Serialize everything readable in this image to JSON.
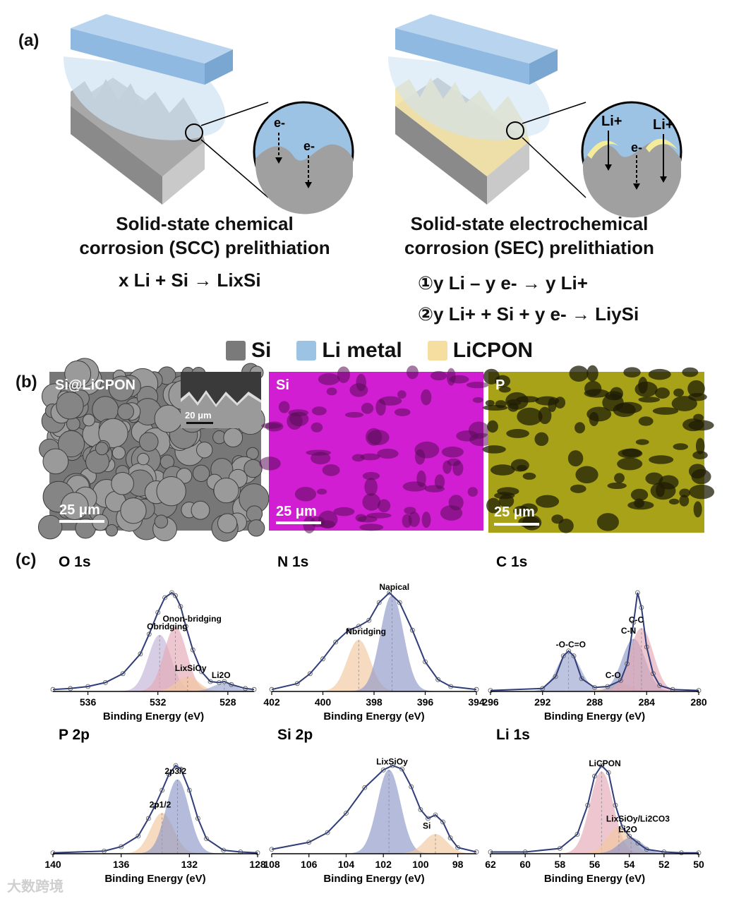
{
  "panel_a": {
    "label": "(a)",
    "scc_title_line1": "Solid-state chemical",
    "scc_title_line2": "corrosion (SCC) prelithiation",
    "scc_eq": "x Li + Si → LixSi",
    "sec_title_line1": "Solid-state electrochemical",
    "sec_title_line2": "corrosion (SEC) prelithiation",
    "sec_eq1": "①y  Li – y e- → y Li+",
    "sec_eq2": "②y Li+ + Si + y e- → LiySi",
    "electron": "e-",
    "li_ion": "Li+",
    "legend": [
      {
        "label": "Si",
        "color": "#7a7a7a"
      },
      {
        "label": "Li metal",
        "color": "#9cc3e4"
      },
      {
        "label": "LiCPON",
        "color": "#f6deA0"
      }
    ]
  },
  "panel_b": {
    "label": "(b)",
    "images": [
      {
        "label": "Si@LiCPON",
        "scale": "25 μm",
        "inset_scale": "20 μm"
      },
      {
        "label": "Si",
        "scale": "25 μm",
        "color": "#d21ed2"
      },
      {
        "label": "P",
        "scale": "25 μm",
        "color": "#b9b21c"
      }
    ]
  },
  "panel_c": {
    "label": "(c)",
    "xlabel": "Binding Energy (eV)",
    "watermark": "大数跨境"
  },
  "chart_data": [
    {
      "type": "line",
      "title": "O 1s",
      "xlabel": "Binding Energy (eV)",
      "xlim": [
        538,
        526.5
      ],
      "ticks": [
        536,
        532,
        528
      ],
      "x": [
        538,
        537,
        536,
        535,
        534,
        533,
        532.5,
        532,
        531.6,
        531.2,
        531,
        530.7,
        530.4,
        530,
        529.5,
        529,
        528.5,
        528.2,
        527.8,
        527,
        526.5
      ],
      "values": [
        0.02,
        0.03,
        0.05,
        0.09,
        0.18,
        0.38,
        0.58,
        0.8,
        0.95,
        1.0,
        0.97,
        0.86,
        0.66,
        0.42,
        0.2,
        0.1,
        0.09,
        0.1,
        0.07,
        0.03,
        0.02
      ],
      "peaks": [
        {
          "name": "Obridging",
          "center": 531.9,
          "height": 0.57,
          "color": "#c3b4d8"
        },
        {
          "name": "Onon-bridging",
          "center": 531.0,
          "height": 0.65,
          "color": "#e6a9b6"
        },
        {
          "name": "LixSiOy",
          "center": 530.3,
          "height": 0.15,
          "color": "#f4c9a0"
        },
        {
          "name": "Li2O",
          "center": 528.2,
          "height": 0.08,
          "color": "#9aa6cf"
        }
      ]
    },
    {
      "type": "line",
      "title": "N 1s",
      "xlabel": "Binding Energy (eV)",
      "xlim": [
        402,
        394
      ],
      "ticks": [
        402,
        400,
        398,
        396,
        394
      ],
      "x": [
        402,
        401,
        400.5,
        400,
        399.5,
        399,
        398.6,
        398.2,
        397.8,
        397.4,
        397,
        396.5,
        396,
        395.5,
        395,
        394
      ],
      "values": [
        0.02,
        0.08,
        0.18,
        0.33,
        0.5,
        0.62,
        0.66,
        0.72,
        0.9,
        1.0,
        0.9,
        0.62,
        0.3,
        0.12,
        0.05,
        0.02
      ],
      "peaks": [
        {
          "name": "Nbridging",
          "center": 398.6,
          "height": 0.52,
          "color": "#f4c9a0"
        },
        {
          "name": "Napical",
          "center": 397.3,
          "height": 0.97,
          "color": "#8f98c8"
        }
      ]
    },
    {
      "type": "line",
      "title": "C 1s",
      "xlabel": "Binding Energy (eV)",
      "xlim": [
        296,
        280
      ],
      "ticks": [
        296,
        292,
        288,
        284,
        280
      ],
      "x": [
        296,
        292,
        291,
        290.4,
        290,
        289.6,
        289,
        288,
        287,
        286,
        285.5,
        285,
        284.7,
        284.4,
        284,
        283.5,
        283,
        282,
        280
      ],
      "values": [
        0.01,
        0.03,
        0.15,
        0.36,
        0.41,
        0.36,
        0.13,
        0.04,
        0.05,
        0.11,
        0.28,
        0.7,
        1.0,
        0.85,
        0.45,
        0.18,
        0.06,
        0.02,
        0.01
      ],
      "peaks": [
        {
          "name": "-O-C=O",
          "center": 290.0,
          "height": 0.39,
          "color": "#9aa6cf"
        },
        {
          "name": "C-O",
          "center": 286.2,
          "height": 0.08,
          "color": "#f4c9a0"
        },
        {
          "name": "C-N",
          "center": 285.0,
          "height": 0.53,
          "color": "#8f98c8"
        },
        {
          "name": "C-C",
          "center": 284.4,
          "height": 0.64,
          "color": "#e6a9b6"
        }
      ]
    },
    {
      "type": "line",
      "title": "P 2p",
      "xlabel": "Binding Energy (eV)",
      "xlim": [
        140,
        128
      ],
      "ticks": [
        140,
        136,
        132,
        128
      ],
      "x": [
        140,
        137,
        136,
        135,
        134.4,
        134,
        133.6,
        133.2,
        132.8,
        132.5,
        132,
        131.5,
        131,
        130,
        129,
        128
      ],
      "values": [
        0.01,
        0.03,
        0.08,
        0.2,
        0.4,
        0.55,
        0.72,
        0.9,
        1.0,
        0.96,
        0.72,
        0.4,
        0.17,
        0.04,
        0.02,
        0.01
      ],
      "peaks": [
        {
          "name": "2p1/2",
          "center": 133.6,
          "height": 0.46,
          "color": "#f4c9a0"
        },
        {
          "name": "2p3/2",
          "center": 132.7,
          "height": 0.84,
          "color": "#8f98c8"
        }
      ]
    },
    {
      "type": "line",
      "title": "Si 2p",
      "xlabel": "Binding Energy (eV)",
      "xlim": [
        108,
        97
      ],
      "ticks": [
        108,
        106,
        104,
        102,
        100,
        98
      ],
      "x": [
        108,
        106,
        105,
        104,
        103,
        102,
        101.5,
        101,
        100.5,
        100,
        99.6,
        99.2,
        98.8,
        98.4,
        98,
        97
      ],
      "values": [
        0.05,
        0.13,
        0.24,
        0.46,
        0.75,
        0.95,
        1.0,
        0.96,
        0.76,
        0.5,
        0.4,
        0.44,
        0.36,
        0.18,
        0.07,
        0.02
      ],
      "peaks": [
        {
          "name": "LixSiOy",
          "center": 101.7,
          "height": 0.95,
          "color": "#8f98c8"
        },
        {
          "name": "Si",
          "center": 99.2,
          "height": 0.22,
          "color": "#f4c9a0"
        }
      ]
    },
    {
      "type": "line",
      "title": "Li 1s",
      "xlabel": "Binding Energy (eV)",
      "xlim": [
        62,
        50
      ],
      "ticks": [
        62,
        60,
        58,
        56,
        54,
        52,
        50
      ],
      "x": [
        62,
        60,
        58,
        57,
        56.4,
        56,
        55.6,
        55.2,
        54.8,
        54.4,
        54,
        53.5,
        53,
        52,
        51,
        50
      ],
      "values": [
        0.02,
        0.02,
        0.06,
        0.22,
        0.55,
        0.88,
        1.0,
        0.92,
        0.55,
        0.3,
        0.2,
        0.12,
        0.05,
        0.02,
        0.01,
        0.01
      ],
      "peaks": [
        {
          "name": "LiCPON",
          "center": 55.6,
          "height": 0.93,
          "color": "#e6a9b6"
        },
        {
          "name": "LixSiOy/Li2CO3",
          "center": 54.6,
          "height": 0.3,
          "color": "#f4c9a0"
        },
        {
          "name": "Li2O",
          "center": 53.9,
          "height": 0.18,
          "color": "#8f98c8"
        }
      ]
    }
  ]
}
